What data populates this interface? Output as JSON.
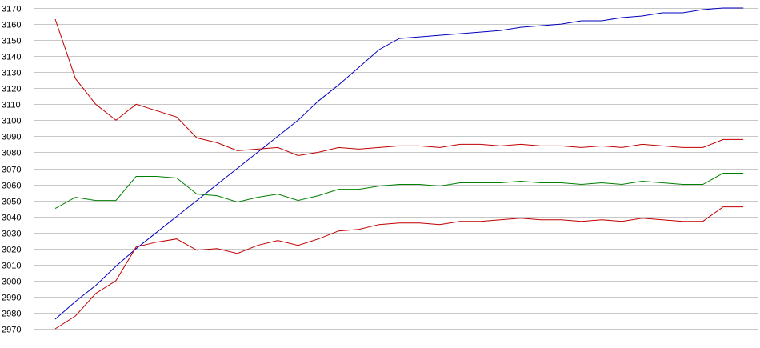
{
  "chart_data": {
    "type": "line",
    "title": "",
    "xlabel": "",
    "ylabel": "",
    "ylim": [
      2970,
      3170
    ],
    "yticks": [
      2970,
      2980,
      2990,
      3000,
      3010,
      3020,
      3030,
      3040,
      3050,
      3060,
      3070,
      3080,
      3090,
      3100,
      3110,
      3120,
      3130,
      3140,
      3150,
      3160,
      3170
    ],
    "grid": true,
    "legend": "none",
    "x": [
      0,
      1,
      2,
      3,
      4,
      5,
      6,
      7,
      8,
      9,
      10,
      11,
      12,
      13,
      14,
      15,
      16,
      17,
      18,
      19,
      20,
      21,
      22,
      23,
      24,
      25,
      26,
      27,
      28,
      29,
      30,
      31,
      32,
      33,
      34
    ],
    "series": [
      {
        "color": "#0000c0",
        "values": [
          2976,
          2987,
          2997,
          3009,
          3020,
          3030,
          3040,
          3050,
          3060,
          3070,
          3080,
          3090,
          3100,
          3112,
          3122,
          3133,
          3144,
          3151,
          3152,
          3153,
          3154,
          3155,
          3156,
          3158,
          3159,
          3160,
          3162,
          3162,
          3164,
          3165,
          3167,
          3167,
          3169,
          3170,
          3170
        ]
      },
      {
        "color": "#c00000",
        "values": [
          3163,
          3126,
          3110,
          3100,
          3110,
          3106,
          3102,
          3089,
          3086,
          3081,
          3082,
          3083,
          3078,
          3080,
          3083,
          3082,
          3083,
          3084,
          3084,
          3083,
          3085,
          3085,
          3084,
          3085,
          3084,
          3084,
          3083,
          3084,
          3083,
          3085,
          3084,
          3083,
          3083,
          3088,
          3088
        ]
      },
      {
        "color": "#008000",
        "values": [
          3045,
          3052,
          3050,
          3050,
          3065,
          3065,
          3064,
          3054,
          3053,
          3049,
          3052,
          3054,
          3050,
          3053,
          3057,
          3057,
          3059,
          3060,
          3060,
          3059,
          3061,
          3061,
          3061,
          3062,
          3061,
          3061,
          3060,
          3061,
          3060,
          3062,
          3061,
          3060,
          3060,
          3067,
          3067
        ]
      },
      {
        "color": "#c00000",
        "values": [
          2970,
          2978,
          2992,
          3000,
          3021,
          3024,
          3026,
          3019,
          3020,
          3017,
          3022,
          3025,
          3022,
          3026,
          3031,
          3032,
          3035,
          3036,
          3036,
          3035,
          3037,
          3037,
          3038,
          3039,
          3038,
          3038,
          3037,
          3038,
          3037,
          3039,
          3038,
          3037,
          3037,
          3046,
          3046
        ]
      }
    ]
  }
}
